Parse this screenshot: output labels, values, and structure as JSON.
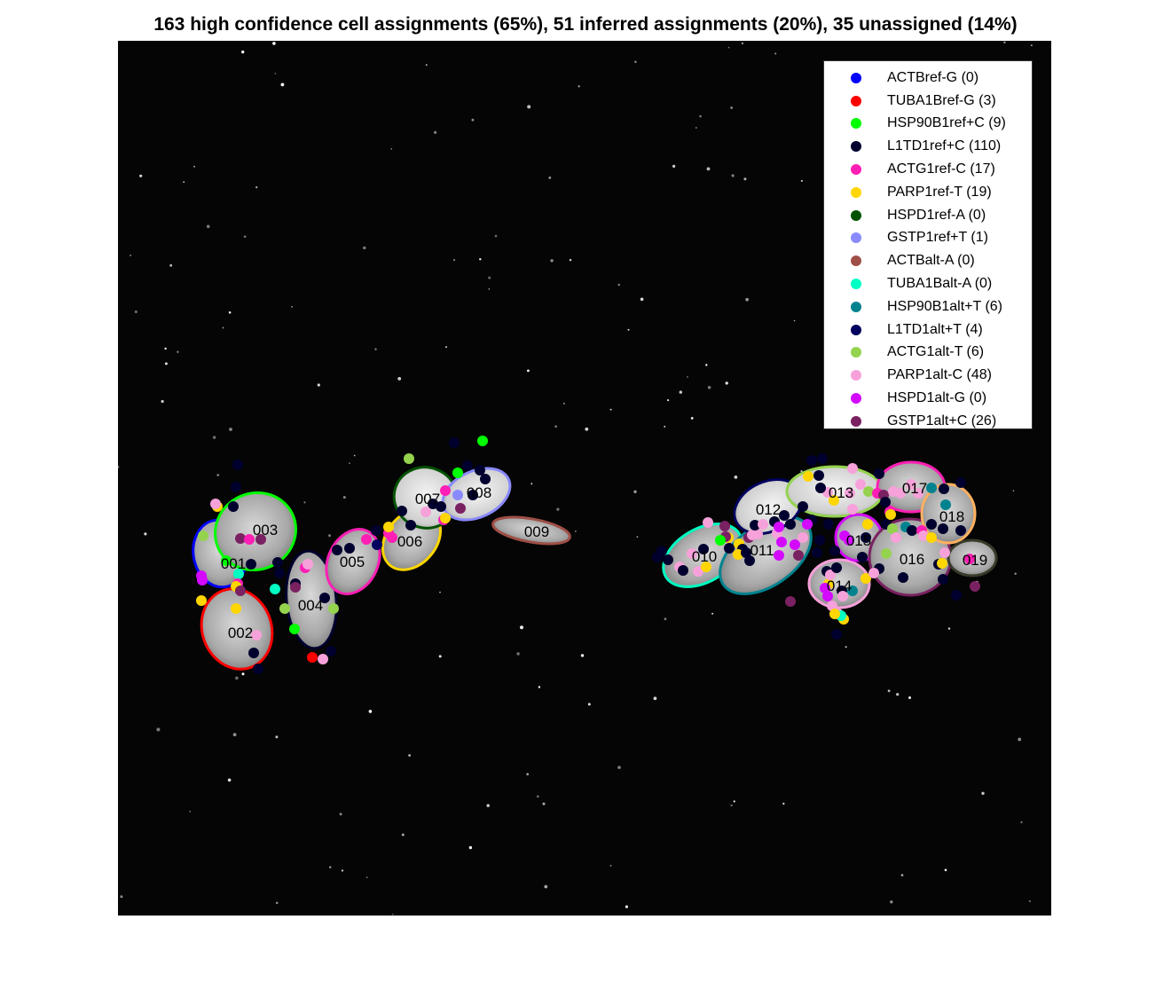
{
  "title": "163 high confidence cell assignments (65%), 51 inferred assignments (20%), 35 unassigned (14%)",
  "legend": [
    {
      "label": "ACTBref-G (0)",
      "color": "#0000ff"
    },
    {
      "label": "TUBA1Bref-G (3)",
      "color": "#ff0000"
    },
    {
      "label": "HSP90B1ref+C (9)",
      "color": "#00ff00"
    },
    {
      "label": "L1TD1ref+C (110)",
      "color": "#00002e"
    },
    {
      "label": "ACTG1ref-C (17)",
      "color": "#ff1fb5"
    },
    {
      "label": "PARP1ref-T (19)",
      "color": "#ffd600"
    },
    {
      "label": "HSPD1ref-A (0)",
      "color": "#005200"
    },
    {
      "label": "GSTP1ref+T (1)",
      "color": "#8a8aff"
    },
    {
      "label": "ACTBalt-A (0)",
      "color": "#9e4f46"
    },
    {
      "label": "TUBA1Balt-A (0)",
      "color": "#00ffc2"
    },
    {
      "label": "HSP90B1alt+T (6)",
      "color": "#00838f"
    },
    {
      "label": "L1TD1alt+T (4)",
      "color": "#00005e"
    },
    {
      "label": "ACTG1alt-T (6)",
      "color": "#95d34f"
    },
    {
      "label": "PARP1alt-C (48)",
      "color": "#f7a1da"
    },
    {
      "label": "HSPD1alt-G (0)",
      "color": "#d40aff"
    },
    {
      "label": "GSTP1alt+C (26)",
      "color": "#7a2161"
    }
  ],
  "cells": [
    {
      "id": "001",
      "outline": "#0000ff"
    },
    {
      "id": "002",
      "outline": "#ff0000"
    },
    {
      "id": "003",
      "outline": "#00ff00"
    },
    {
      "id": "004",
      "outline": "#00002e"
    },
    {
      "id": "005",
      "outline": "#ff1fb5"
    },
    {
      "id": "006",
      "outline": "#ffd600"
    },
    {
      "id": "007",
      "outline": "#005200"
    },
    {
      "id": "008",
      "outline": "#8a8aff"
    },
    {
      "id": "009",
      "outline": "#9e4f46"
    },
    {
      "id": "010",
      "outline": "#00ffc2"
    },
    {
      "id": "011",
      "outline": "#00838f"
    },
    {
      "id": "012",
      "outline": "#00005e"
    },
    {
      "id": "013",
      "outline": "#95d34f"
    },
    {
      "id": "014",
      "outline": "#f7a1da"
    },
    {
      "id": "015",
      "outline": "#d40aff"
    },
    {
      "id": "016",
      "outline": "#7a2161"
    },
    {
      "id": "017",
      "outline": "#ff1fb5"
    },
    {
      "id": "018",
      "outline": "#ffb060"
    },
    {
      "id": "019",
      "outline": "#3a3a2a"
    }
  ]
}
